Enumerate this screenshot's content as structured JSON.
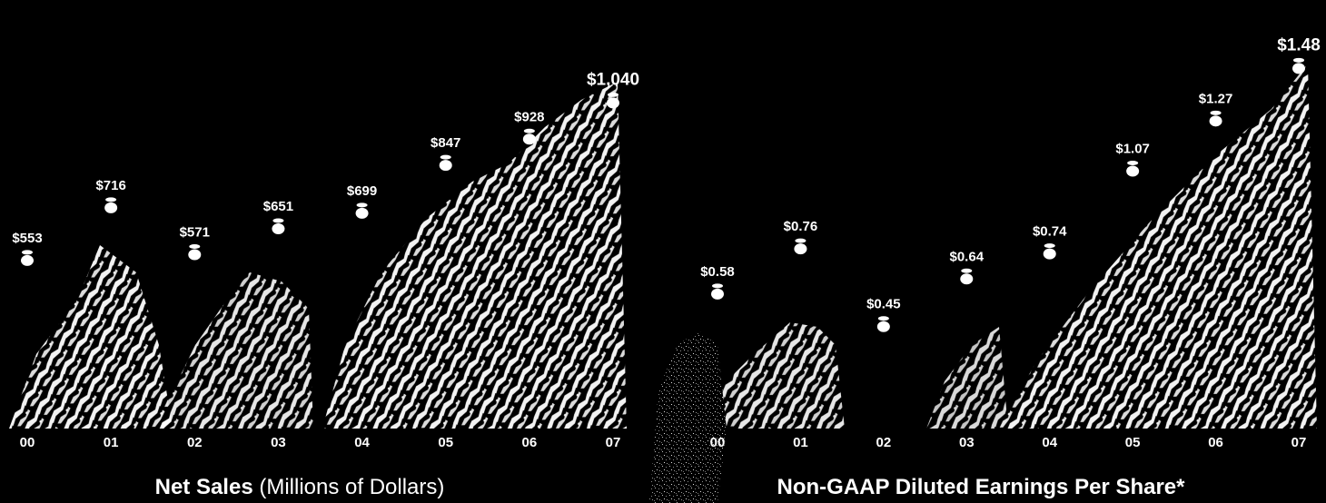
{
  "colors": {
    "background": "#000000",
    "text": "#ffffff",
    "rock": "#ffffff",
    "marker": "#ffffff"
  },
  "chart_data": [
    {
      "type": "area",
      "title": "Net Sales",
      "subtitle": "(Millions of Dollars)",
      "categories": [
        "00",
        "01",
        "02",
        "03",
        "04",
        "05",
        "06",
        "07"
      ],
      "values": [
        553,
        716,
        571,
        651,
        699,
        847,
        928,
        1040
      ],
      "value_labels": [
        "$553",
        "$716",
        "$571",
        "$651",
        "$699",
        "$847",
        "$928",
        "$1,040"
      ],
      "ylim": [
        0,
        1100
      ]
    },
    {
      "type": "area",
      "title": "Non-GAAP Diluted Earnings Per Share*",
      "subtitle": "",
      "categories": [
        "00",
        "01",
        "02",
        "03",
        "04",
        "05",
        "06",
        "07"
      ],
      "values": [
        0.58,
        0.76,
        0.45,
        0.64,
        0.74,
        1.07,
        1.27,
        1.48
      ],
      "value_labels": [
        "$0.58",
        "$0.76",
        "$0.45",
        "$0.64",
        "$0.74",
        "$1.07",
        "$1.27",
        "$1.48"
      ],
      "ylim": [
        0,
        1.55
      ]
    }
  ]
}
